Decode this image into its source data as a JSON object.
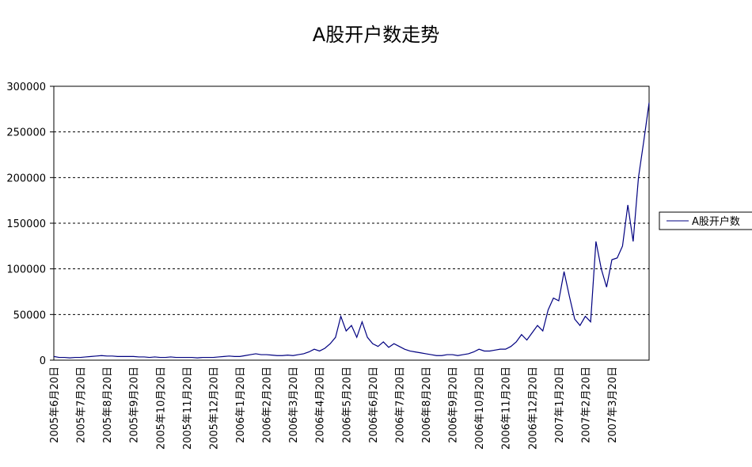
{
  "chart_data": {
    "type": "line",
    "title": "A股开户数走势",
    "categories": [
      "2005年6月20日",
      null,
      null,
      null,
      null,
      "2005年7月20日",
      null,
      null,
      null,
      null,
      "2005年8月20日",
      null,
      null,
      null,
      null,
      "2005年9月20日",
      null,
      null,
      null,
      null,
      "2005年10月20日",
      null,
      null,
      null,
      null,
      "2005年11月20日",
      null,
      null,
      null,
      null,
      "2005年12月20日",
      null,
      null,
      null,
      null,
      "2006年1月20日",
      null,
      null,
      null,
      null,
      "2006年2月20日",
      null,
      null,
      null,
      null,
      "2006年3月20日",
      null,
      null,
      null,
      null,
      "2006年4月20日",
      null,
      null,
      null,
      null,
      "2006年5月20日",
      null,
      null,
      null,
      null,
      "2006年6月20日",
      null,
      null,
      null,
      null,
      "2006年7月20日",
      null,
      null,
      null,
      null,
      "2006年8月20日",
      null,
      null,
      null,
      null,
      "2006年9月20日",
      null,
      null,
      null,
      null,
      "2006年10月20日",
      null,
      null,
      null,
      null,
      "2006年11月20日",
      null,
      null,
      null,
      null,
      "2006年12月20日",
      null,
      null,
      null,
      null,
      "2007年1月20日",
      null,
      null,
      null,
      null,
      "2007年2月20日",
      null,
      null,
      null,
      null,
      "2007年3月20日",
      null,
      null,
      null,
      null,
      null,
      null,
      null
    ],
    "series": [
      {
        "name": "A股开户数",
        "color": "#000080",
        "values": [
          4000,
          3000,
          3000,
          2500,
          3000,
          3000,
          3500,
          4000,
          4500,
          5000,
          4500,
          4500,
          4000,
          4000,
          4000,
          4000,
          3500,
          3500,
          3000,
          3500,
          3000,
          3000,
          3500,
          3000,
          3000,
          3000,
          3000,
          2500,
          3000,
          3000,
          3000,
          3500,
          4000,
          4500,
          4000,
          4000,
          5000,
          6000,
          7000,
          6000,
          6000,
          5500,
          5000,
          5000,
          5500,
          5000,
          6000,
          7000,
          9000,
          12000,
          10000,
          13000,
          18000,
          25000,
          48000,
          32000,
          38000,
          25000,
          42000,
          25000,
          18000,
          15000,
          20000,
          14000,
          18000,
          15000,
          12000,
          10000,
          9000,
          8000,
          7000,
          6000,
          5000,
          5000,
          6000,
          6000,
          5000,
          6000,
          7000,
          9000,
          12000,
          10000,
          10000,
          11000,
          12000,
          12000,
          15000,
          20000,
          28000,
          22000,
          30000,
          38000,
          32000,
          55000,
          68000,
          65000,
          97000,
          70000,
          45000,
          38000,
          48000,
          42000,
          130000,
          100000,
          80000,
          110000,
          112000,
          125000,
          170000,
          130000,
          200000,
          240000,
          282000
        ]
      }
    ],
    "ylim": [
      0,
      300000
    ],
    "yticks": [
      0,
      50000,
      100000,
      150000,
      200000,
      250000,
      300000
    ],
    "grid": true,
    "legend": "right"
  }
}
